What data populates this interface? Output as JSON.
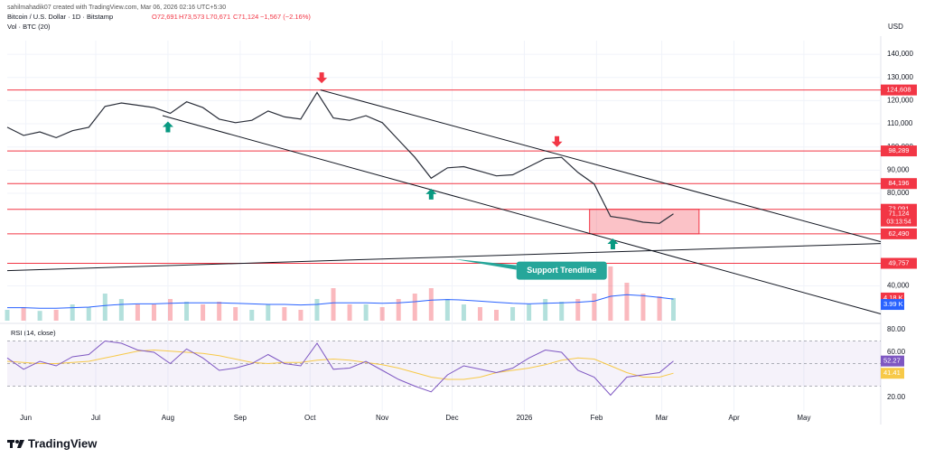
{
  "header": {
    "credit": "sahilmahadik07 created with TradingView.com, Mar 06, 2026 02:16 UTC+5:30",
    "symbol": "Bitcoin / U.S. Dollar · 1D · Bitstamp",
    "ohlc": [
      "O72,691",
      "H73,573",
      "L70,671",
      "C71,124",
      "−1,567 (−2.16%)"
    ],
    "volume_label": "Vol · BTC (20)",
    "rsi_label": "RSI (14, close)",
    "currency": "USD",
    "logo": "TradingView"
  },
  "chart_data": {
    "type": "line",
    "x": [
      0,
      7,
      14,
      21,
      28,
      35,
      42,
      49,
      56,
      63,
      70,
      77,
      84,
      91,
      98,
      105,
      112,
      119,
      126,
      133,
      140,
      147,
      154,
      161,
      168,
      175,
      182,
      189,
      196,
      203,
      210,
      217,
      224,
      231,
      238,
      245,
      252,
      259,
      266,
      273,
      280,
      286
    ],
    "xlim": [
      0,
      375
    ],
    "xticks": [
      {
        "value": 8,
        "label": "Jun"
      },
      {
        "value": 38,
        "label": "Jul"
      },
      {
        "value": 69,
        "label": "Aug"
      },
      {
        "value": 100,
        "label": "Sep"
      },
      {
        "value": 130,
        "label": "Oct"
      },
      {
        "value": 161,
        "label": "Nov"
      },
      {
        "value": 191,
        "label": "Dec"
      },
      {
        "value": 222,
        "label": "2026"
      },
      {
        "value": 253,
        "label": "Feb"
      },
      {
        "value": 281,
        "label": "Mar"
      },
      {
        "value": 312,
        "label": "Apr"
      },
      {
        "value": 342,
        "label": "May"
      }
    ],
    "ylim": [
      25000,
      142000
    ],
    "yticks": [
      {
        "value": 40000,
        "label": "40,000"
      },
      {
        "value": 80000,
        "label": "80,000"
      },
      {
        "value": 90000,
        "label": "90,000"
      },
      {
        "value": 100000,
        "label": "100,000"
      },
      {
        "value": 110000,
        "label": "110,000"
      },
      {
        "value": 120000,
        "label": "120,000"
      },
      {
        "value": 130000,
        "label": "130,000"
      },
      {
        "value": 140000,
        "label": "140,000"
      }
    ],
    "grid": true,
    "series": [
      {
        "color": "#2a2e39",
        "values": [
          108500,
          105000,
          106500,
          104000,
          107000,
          108500,
          117500,
          119000,
          118000,
          117000,
          114500,
          119500,
          117000,
          112000,
          110500,
          111500,
          115500,
          113000,
          112000,
          123500,
          112500,
          111500,
          113500,
          110500,
          103000,
          95500,
          86500,
          91000,
          91500,
          89500,
          87500,
          88000,
          91500,
          95000,
          95500,
          89000,
          84000,
          70000,
          69000,
          67500,
          67000,
          71124
        ]
      }
    ],
    "levels": {
      "color": "#f23645",
      "items": [
        {
          "value": 124608,
          "label": "124,608"
        },
        {
          "value": 98289,
          "label": "98,289"
        },
        {
          "value": 84196,
          "label": "84,196"
        },
        {
          "value": 73091,
          "label": "73,091"
        },
        {
          "value": 62490,
          "label": "62,490"
        },
        {
          "value": 49757,
          "label": "49,757"
        }
      ]
    },
    "last_price": {
      "value": 71124,
      "label": "71,124",
      "countdown": "03:13:54"
    },
    "zone": {
      "x": [
        250,
        297
      ],
      "y": [
        62490,
        73091
      ],
      "color": "#f23645"
    },
    "trendlines": [
      {
        "x": [
          134.5,
          375
        ],
        "y": [
          124608,
          59066
        ]
      },
      {
        "x": [
          66.7,
          375
        ],
        "y": [
          113540,
          27938
        ]
      },
      {
        "x": [
          0,
          375
        ],
        "y": [
          46615,
          58288
        ]
      }
    ],
    "annotations": [
      {
        "text": "Support Trendline",
        "x": 238,
        "y": 46600,
        "color": "#26a69a"
      }
    ],
    "arrows": [
      {
        "direction": "down",
        "x": 135,
        "y": 127500,
        "color": "#f23645"
      },
      {
        "direction": "down",
        "x": 236,
        "y": 100000,
        "color": "#f23645"
      },
      {
        "direction": "up",
        "x": 69,
        "y": 111000,
        "color": "#089981"
      },
      {
        "direction": "up",
        "x": 182,
        "y": 82000,
        "color": "#089981"
      },
      {
        "direction": "up",
        "x": 260,
        "y": 60500,
        "color": "#089981"
      }
    ],
    "volume": {
      "ylim": [
        0,
        12
      ],
      "values": [
        2,
        2.5,
        1.8,
        2,
        3,
        2.5,
        5,
        4,
        3,
        3,
        4,
        3.5,
        3,
        3.5,
        2.5,
        2,
        3,
        2.5,
        2,
        4,
        6,
        3,
        3,
        2.5,
        4,
        5,
        6,
        4,
        3,
        2.5,
        2,
        2.5,
        3,
        4,
        3.5,
        4,
        5,
        10,
        7,
        5,
        4.5,
        4.18
      ],
      "value_label": "4.18 K",
      "ma": [
        2.4,
        2.4,
        2.3,
        2.3,
        2.4,
        2.5,
        2.8,
        3,
        3.1,
        3.1,
        3.2,
        3.3,
        3.3,
        3.3,
        3.2,
        3.1,
        3,
        3,
        2.9,
        3,
        3.3,
        3.3,
        3.3,
        3.2,
        3.3,
        3.5,
        3.8,
        3.9,
        3.8,
        3.6,
        3.4,
        3.2,
        3.1,
        3.2,
        3.3,
        3.4,
        3.6,
        4.5,
        4.8,
        4.6,
        4.3,
        3.99
      ],
      "ma_label": "3.99 K",
      "ma_color": "#2962ff"
    },
    "rsi": {
      "ylim": [
        10,
        82
      ],
      "yticks": [
        {
          "value": 20,
          "label": "20.00"
        },
        {
          "value": 60,
          "label": "60.00"
        },
        {
          "value": 80,
          "label": "80.00"
        }
      ],
      "band": [
        30,
        70
      ],
      "midline": 50,
      "color": "#7e57c2",
      "values": [
        55,
        45,
        52,
        48,
        56,
        58,
        70,
        68,
        62,
        60,
        50,
        63,
        55,
        44,
        46,
        50,
        58,
        50,
        48,
        68,
        45,
        46,
        52,
        44,
        36,
        30,
        25,
        40,
        48,
        45,
        42,
        46,
        55,
        62,
        60,
        44,
        38,
        22,
        38,
        40,
        42,
        52.27
      ],
      "ma_color": "#f7c948",
      "ma": [
        52,
        51,
        50,
        50,
        51,
        52,
        55,
        58,
        61,
        62,
        61,
        60,
        59,
        57,
        54,
        51,
        50,
        51,
        51,
        53,
        54,
        53,
        51,
        49,
        46,
        42,
        38,
        36,
        36,
        38,
        42,
        44,
        46,
        49,
        53,
        55,
        54,
        48,
        42,
        38,
        38,
        41.41
      ]
    }
  }
}
